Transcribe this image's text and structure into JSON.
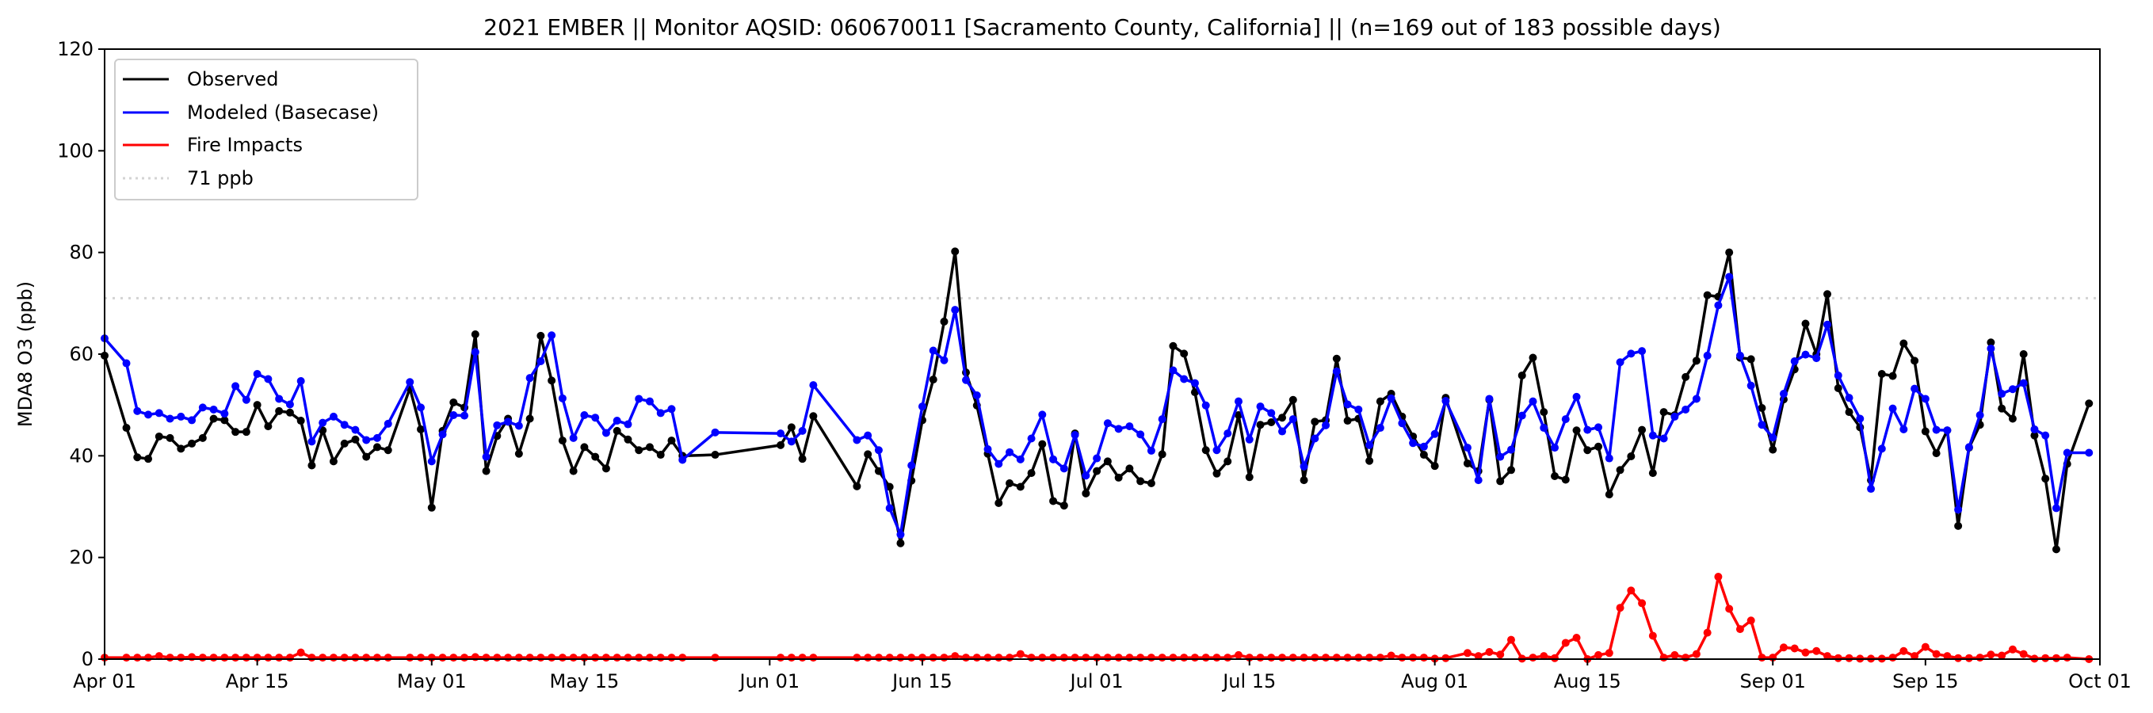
{
  "chart_data": {
    "type": "line",
    "title": "2021 EMBER || Monitor AQSID: 060670011 [Sacramento County, California] || (n=169 out of 183 possible days)",
    "xlabel": "",
    "ylabel": "MDA8 O3 (ppb)",
    "x_unit": "day index starting Apr 01",
    "xlim": [
      0,
      183
    ],
    "ylim": [
      0,
      120
    ],
    "yticks": [
      0,
      20,
      40,
      60,
      80,
      100,
      120
    ],
    "xticks": [
      {
        "day": 0,
        "label": "Apr 01"
      },
      {
        "day": 14,
        "label": "Apr 15"
      },
      {
        "day": 30,
        "label": "May 01"
      },
      {
        "day": 44,
        "label": "May 15"
      },
      {
        "day": 61,
        "label": "Jun 01"
      },
      {
        "day": 75,
        "label": "Jun 15"
      },
      {
        "day": 91,
        "label": "Jul 01"
      },
      {
        "day": 105,
        "label": "Jul 15"
      },
      {
        "day": 122,
        "label": "Aug 01"
      },
      {
        "day": 136,
        "label": "Aug 15"
      },
      {
        "day": 153,
        "label": "Sep 01"
      },
      {
        "day": 167,
        "label": "Sep 15"
      },
      {
        "day": 183,
        "label": "Oct 01"
      }
    ],
    "grid": false,
    "legend_position": "top-left",
    "reference_line": {
      "value": 71,
      "label": "71 ppb",
      "color": "#d3d3d3",
      "style": "dotted"
    },
    "series": [
      {
        "name": "Observed",
        "color": "#000000",
        "values": [
          59.7,
          null,
          45.5,
          39.7,
          39.4,
          43.8,
          43.5,
          41.4,
          42.4,
          43.5,
          47.3,
          47,
          44.7,
          44.7,
          50,
          45.8,
          48.8,
          48.5,
          46.9,
          38.1,
          45,
          38.9,
          42.4,
          43.2,
          39.8,
          41.7,
          41.1,
          null,
          53.3,
          45.2,
          29.8,
          44.9,
          50.5,
          49.5,
          63.9,
          37,
          43.9,
          47.3,
          40.4,
          47.3,
          63.6,
          54.8,
          43,
          37,
          41.7,
          39.8,
          37.5,
          44.9,
          43.2,
          41.1,
          41.7,
          40.2,
          43,
          40,
          null,
          null,
          40.2,
          null,
          null,
          null,
          null,
          null,
          42.1,
          45.6,
          39.4,
          47.8,
          null,
          null,
          null,
          34,
          40.3,
          37,
          33.9,
          22.8,
          35.1,
          47,
          55,
          66.4,
          80.2,
          56.4,
          49.9,
          40.4,
          30.7,
          34.6,
          33.9,
          36.6,
          42.3,
          31.1,
          30.2,
          44.4,
          32.6,
          37,
          38.9,
          35.7,
          37.5,
          35,
          34.6,
          40.3,
          61.6,
          60.1,
          52.5,
          41.1,
          36.5,
          38.9,
          48,
          35.8,
          46.1,
          46.6,
          47.5,
          51,
          35.2,
          46.7,
          47,
          59.1,
          46.9,
          47.3,
          39,
          50.7,
          52.2,
          47.7,
          43.8,
          40.2,
          38,
          51.4,
          null,
          38.5,
          37,
          51,
          35,
          37.2,
          55.8,
          59.3,
          48.6,
          36,
          35.3,
          45,
          41.1,
          41.8,
          32.4,
          37.2,
          39.9,
          45.1,
          36.6,
          48.6,
          48,
          55.5,
          58.7,
          71.6,
          71.3,
          80,
          59.3,
          59,
          49.4,
          41.2,
          51.1,
          57,
          66,
          60,
          71.8,
          53.3,
          48.6,
          45.6,
          35.2,
          56.1,
          55.7,
          62.1,
          58.7,
          44.8,
          40.5,
          45,
          26.2,
          41.6,
          46.1,
          62.3,
          49.3,
          47.3,
          60,
          44,
          35.5,
          21.6,
          38.4,
          null,
          50.3
        ]
      },
      {
        "name": "Modeled (Basecase)",
        "color": "#0000ff",
        "values": [
          63.1,
          null,
          58.2,
          48.8,
          48.1,
          48.4,
          47.3,
          47.7,
          47,
          49.5,
          49.1,
          48.3,
          53.7,
          51,
          56.1,
          55.1,
          51.2,
          50.1,
          54.7,
          42.8,
          46.5,
          47.7,
          46.1,
          45.1,
          43.1,
          43.5,
          46.3,
          null,
          54.5,
          49.5,
          38.9,
          44.2,
          48,
          47.9,
          60.4,
          39.8,
          46,
          46.7,
          45.9,
          55.3,
          58.6,
          63.7,
          51.3,
          43.5,
          48,
          47.5,
          44.5,
          46.9,
          46.2,
          51.2,
          50.7,
          48.4,
          49.2,
          39.2,
          null,
          null,
          44.6,
          null,
          null,
          null,
          null,
          null,
          44.4,
          42.8,
          44.9,
          53.9,
          null,
          null,
          null,
          43.1,
          44,
          41.1,
          29.7,
          24.5,
          38.1,
          49.7,
          60.7,
          58.8,
          68.7,
          54.9,
          51.9,
          41.3,
          38.4,
          40.7,
          39.3,
          43.4,
          48.1,
          39.3,
          37.5,
          44.1,
          36.1,
          39.5,
          46.4,
          45.3,
          45.8,
          44.2,
          41,
          47.2,
          56.8,
          55.1,
          54.3,
          49.9,
          41.1,
          44.4,
          50.7,
          43.2,
          49.7,
          48.4,
          44.8,
          47.2,
          37.9,
          43.4,
          46,
          56.6,
          50.1,
          49.1,
          42.1,
          45.5,
          51.3,
          46.4,
          42.5,
          41.8,
          44.3,
          50.8,
          null,
          41.6,
          35.2,
          51.2,
          39.8,
          41.2,
          47.9,
          50.7,
          45.5,
          41.6,
          47.2,
          51.6,
          45.1,
          45.6,
          39.5,
          58.4,
          60.1,
          60.6,
          44,
          43.4,
          47.7,
          49.1,
          51.2,
          59.7,
          69.6,
          75.2,
          59.7,
          53.8,
          46.1,
          43.6,
          52.2,
          58.6,
          59.9,
          59.2,
          65.8,
          55.8,
          51.4,
          47.3,
          33.5,
          41.4,
          49.3,
          45.2,
          53.2,
          51.2,
          45.1,
          45,
          29.4,
          41.7,
          48,
          61.1,
          52.2,
          53.1,
          54.3,
          45.2,
          44,
          29.7,
          40.6,
          null,
          40.6
        ]
      },
      {
        "name": "Fire Impacts",
        "color": "#ff0000",
        "values": [
          0.3,
          null,
          0.3,
          0.3,
          0.3,
          0.6,
          0.3,
          0.3,
          0.4,
          0.3,
          0.3,
          0.3,
          0.3,
          0.3,
          0.3,
          0.3,
          0.3,
          0.3,
          1.3,
          0.3,
          0.3,
          0.3,
          0.3,
          0.3,
          0.3,
          0.3,
          0.3,
          null,
          0.3,
          0.3,
          0.3,
          0.3,
          0.3,
          0.3,
          0.4,
          0.3,
          0.3,
          0.3,
          0.3,
          0.3,
          0.3,
          0.3,
          0.3,
          0.3,
          0.3,
          0.3,
          0.3,
          0.3,
          0.3,
          0.3,
          0.3,
          0.3,
          0.3,
          0.3,
          null,
          null,
          0.3,
          null,
          null,
          null,
          null,
          null,
          0.3,
          0.3,
          0.3,
          0.3,
          null,
          null,
          null,
          0.3,
          0.3,
          0.3,
          0.3,
          0.3,
          0.3,
          0.3,
          0.3,
          0.3,
          0.6,
          0.3,
          0.3,
          0.3,
          0.3,
          0.3,
          1.0,
          0.3,
          0.3,
          0.3,
          0.3,
          0.3,
          0.3,
          0.3,
          0.3,
          0.3,
          0.3,
          0.3,
          0.3,
          0.3,
          0.3,
          0.3,
          0.3,
          0.3,
          0.3,
          0.3,
          0.8,
          0.3,
          0.3,
          0.3,
          0.3,
          0.3,
          0.3,
          0.3,
          0.3,
          0.3,
          0.3,
          0.3,
          0.3,
          0.3,
          0.7,
          0.3,
          0.3,
          0.3,
          0.1,
          0.2,
          null,
          1.2,
          0.6,
          1.4,
          0.9,
          3.8,
          0.1,
          0.3,
          0.6,
          0.2,
          3.2,
          4.2,
          0,
          0.8,
          1.2,
          10.1,
          13.5,
          11,
          4.6,
          0.3,
          0.8,
          0.3,
          1,
          5.2,
          16.2,
          9.9,
          5.9,
          7.6,
          0.3,
          0.3,
          2.3,
          2.1,
          1.3,
          1.6,
          0.6,
          0.2,
          0.2,
          0.1,
          0.1,
          0.1,
          0.3,
          1.6,
          0.6,
          2.4,
          1,
          0.6,
          0.2,
          0.2,
          0.3,
          0.9,
          0.7,
          1.9,
          1,
          0.1,
          0.2,
          0.2,
          0.3,
          null,
          0
        ]
      }
    ]
  }
}
